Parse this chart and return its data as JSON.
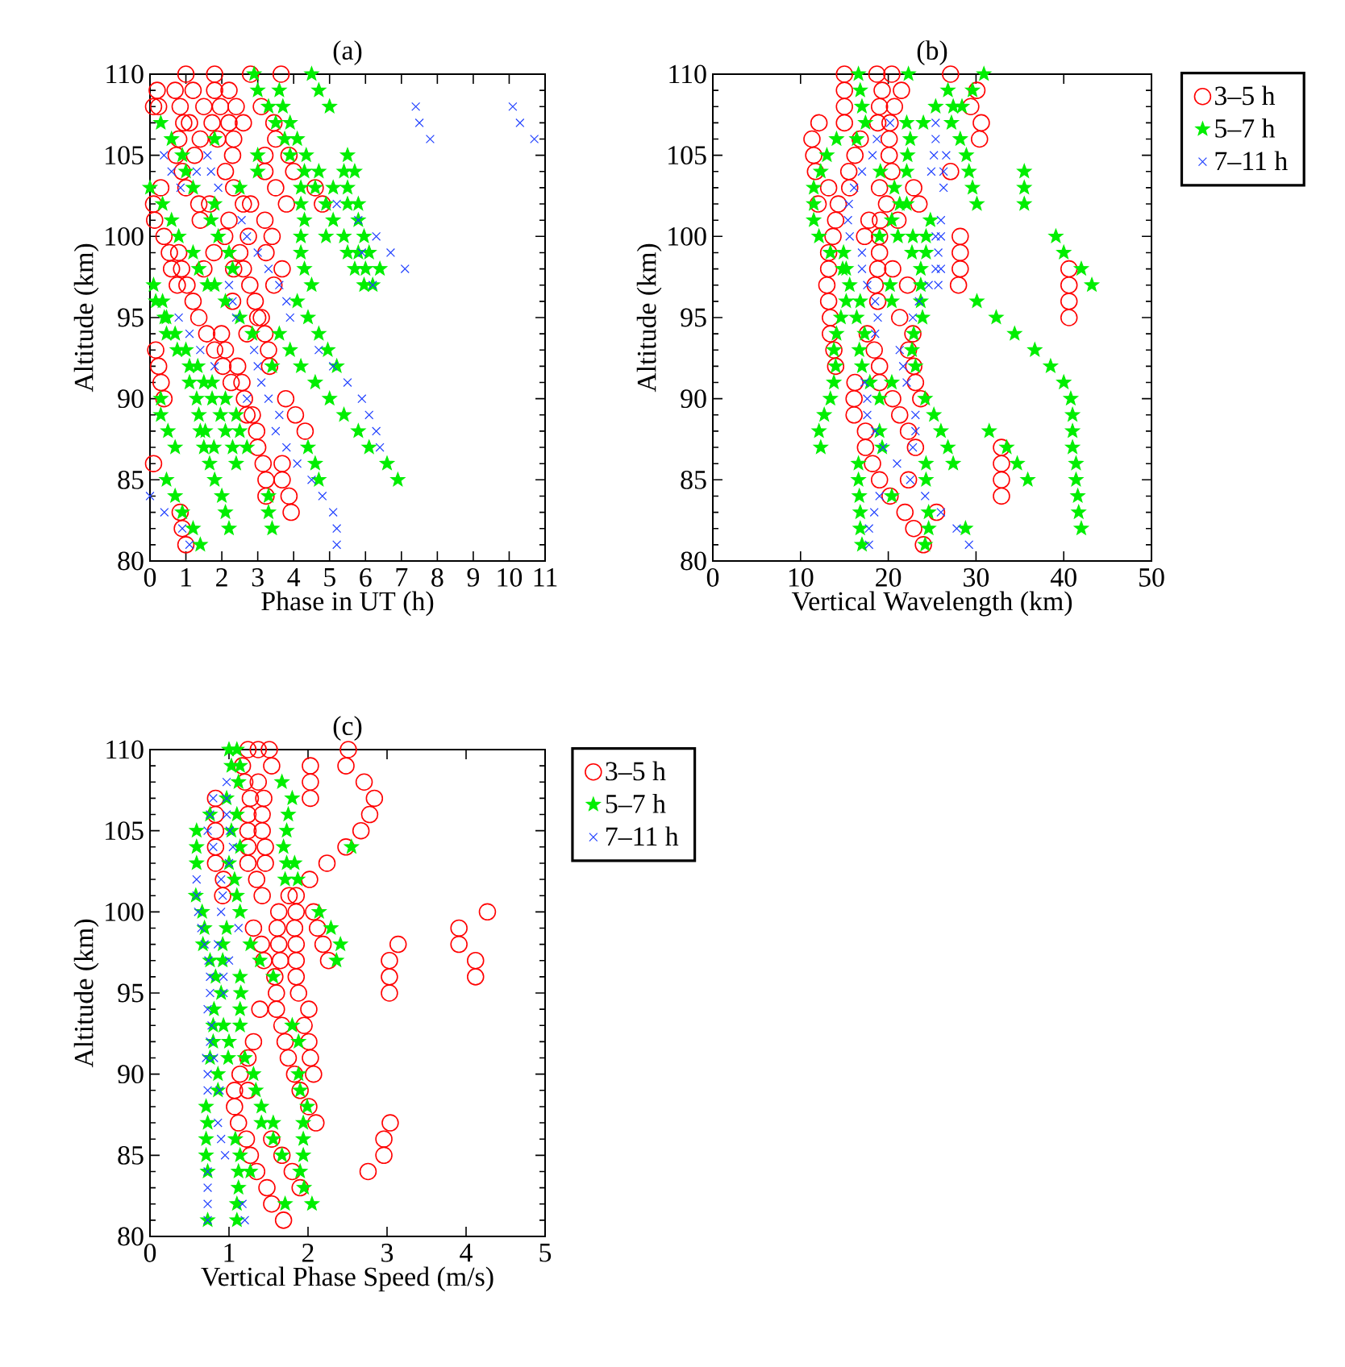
{
  "chart_data": [
    {
      "type": "scatter",
      "title": "(a)",
      "xlabel": "Phase in UT (h)",
      "ylabel": "Altitude (km)",
      "xlim": [
        0,
        11
      ],
      "xticks": [
        0,
        1,
        2,
        3,
        4,
        5,
        6,
        7,
        8,
        9,
        10,
        11
      ],
      "ylim": [
        80,
        110
      ],
      "yticks": [
        80,
        85,
        90,
        95,
        100,
        105,
        110
      ],
      "legend": false,
      "series": [
        {
          "color": "#ff0000",
          "marker": "circle",
          "x": [
            1.0,
            1.8,
            2.8,
            3.65,
            0.2,
            0.7,
            1.2,
            1.8,
            2.2,
            0.1,
            0.24,
            0.84,
            1.5,
            1.96,
            2.4,
            3.1,
            0.94,
            1.1,
            1.73,
            2.2,
            2.6,
            3.45,
            0.8,
            1.4,
            1.88,
            2.33,
            3.5,
            0.73,
            1.24,
            2.3,
            3.2,
            3.87,
            0.9,
            2.1,
            3.2,
            4.0,
            0.3,
            1.0,
            2.33,
            3.5,
            4.6,
            0.1,
            1.36,
            1.66,
            2.6,
            2.8,
            3.8,
            4.8,
            0.13,
            1.4,
            2.2,
            3.2,
            0.39,
            2.08,
            2.74,
            3.4,
            0.54,
            0.8,
            1.78,
            2.5,
            3.23,
            0.6,
            0.88,
            1.5,
            2.33,
            2.6,
            3.68,
            0.76,
            1.03,
            2.78,
            3.45,
            1.2,
            2.3,
            2.93,
            1.36,
            3.0,
            3.1,
            1.58,
            1.99,
            2.7,
            3.2,
            0.16,
            1.8,
            2.1,
            3.3,
            0.24,
            2.03,
            2.44,
            3.33,
            0.31,
            2.26,
            2.56,
            0.39,
            2.63,
            3.78,
            2.7,
            2.85,
            4.05,
            2.97,
            4.32,
            3.0,
            0.1,
            3.15,
            3.68,
            3.23,
            3.68,
            3.23,
            3.87,
            0.84,
            3.93,
            0.9,
            1.0
          ],
          "values": [
            110,
            110,
            110,
            110,
            109,
            109,
            109,
            109,
            109,
            108,
            108,
            108,
            108,
            108,
            108,
            108,
            107,
            107,
            107,
            107,
            107,
            107,
            106,
            106,
            106,
            106,
            106,
            105,
            105,
            105,
            105,
            105,
            104,
            104,
            104,
            104,
            103,
            103,
            103,
            103,
            103,
            102,
            102,
            102,
            102,
            102,
            102,
            102,
            101,
            101,
            101,
            101,
            100,
            100,
            100,
            100,
            99,
            99,
            99,
            99,
            99,
            98,
            98,
            98,
            98,
            98,
            98,
            97,
            97,
            97,
            97,
            96,
            96,
            96,
            95,
            95,
            95,
            94,
            94,
            94,
            94,
            93,
            93,
            93,
            93,
            92,
            92,
            92,
            92,
            91,
            91,
            91,
            90,
            90,
            90,
            89,
            89,
            89,
            88,
            88,
            87,
            86,
            86,
            86,
            85,
            85,
            84,
            84,
            83,
            83,
            82,
            81
          ]
        },
        {
          "color": "#00ee00",
          "marker": "star",
          "x": [
            2.9,
            4.5,
            3.0,
            3.6,
            4.7,
            3.3,
            3.7,
            5.0,
            0.3,
            3.5,
            3.9,
            0.6,
            1.8,
            3.75,
            4.1,
            0.9,
            3.0,
            3.9,
            4.35,
            5.5,
            1.0,
            3.0,
            4.3,
            4.7,
            5.4,
            5.7,
            0.0,
            1.2,
            2.5,
            4.2,
            4.6,
            5.1,
            5.5,
            0.35,
            1.8,
            4.2,
            4.9,
            5.5,
            5.8,
            0.6,
            1.7,
            4.3,
            5.1,
            5.8,
            0.8,
            1.9,
            4.2,
            4.9,
            5.4,
            5.96,
            1.2,
            2.2,
            4.2,
            5.5,
            5.8,
            6.1,
            1.36,
            2.3,
            4.3,
            5.7,
            6.0,
            6.4,
            0.1,
            1.6,
            1.8,
            4.5,
            5.96,
            6.2,
            0.16,
            0.35,
            2.1,
            4.1,
            0.4,
            0.46,
            2.5,
            4.4,
            0.46,
            0.7,
            2.85,
            3.6,
            4.7,
            0.76,
            1.0,
            3.9,
            4.95,
            1.1,
            1.33,
            3.4,
            4.2,
            5.2,
            1.1,
            1.5,
            1.73,
            4.6,
            0.3,
            1.3,
            1.73,
            2.1,
            5.0,
            0.3,
            1.36,
            1.96,
            2.4,
            5.4,
            0.5,
            1.4,
            1.54,
            2.1,
            2.5,
            5.8,
            0.7,
            1.5,
            1.78,
            2.3,
            2.7,
            4.4,
            6.1,
            1.66,
            2.4,
            4.6,
            6.6,
            0.46,
            1.8,
            4.7,
            6.9,
            0.7,
            2.0,
            3.3,
            0.9,
            2.1,
            3.3,
            1.2,
            2.2,
            3.4,
            1.4
          ],
          "values": [
            110,
            110,
            109,
            109,
            109,
            108,
            108,
            108,
            107,
            107,
            107,
            106,
            106,
            106,
            106,
            105,
            105,
            105,
            105,
            105,
            104,
            104,
            104,
            104,
            104,
            104,
            103,
            103,
            103,
            103,
            103,
            103,
            103,
            102,
            102,
            102,
            102,
            102,
            102,
            101,
            101,
            101,
            101,
            101,
            100,
            100,
            100,
            100,
            100,
            100,
            99,
            99,
            99,
            99,
            99,
            99,
            98,
            98,
            98,
            98,
            98,
            98,
            97,
            97,
            97,
            97,
            97,
            97,
            96,
            96,
            96,
            96,
            95,
            95,
            95,
            95,
            94,
            94,
            94,
            94,
            94,
            93,
            93,
            93,
            93,
            92,
            92,
            92,
            92,
            92,
            91,
            91,
            91,
            91,
            90,
            90,
            90,
            90,
            90,
            89,
            89,
            89,
            89,
            89,
            88,
            88,
            88,
            88,
            88,
            88,
            87,
            87,
            87,
            87,
            87,
            87,
            87,
            86,
            86,
            86,
            86,
            85,
            85,
            85,
            85,
            84,
            84,
            84,
            83,
            83,
            83,
            82,
            82,
            82,
            81
          ]
        },
        {
          "color": "#2040ff",
          "marker": "cross",
          "x": [
            7.4,
            10.1,
            7.5,
            10.3,
            7.8,
            10.7,
            0.39,
            1.6,
            0.6,
            1.3,
            1.7,
            0.85,
            1.9,
            5.2,
            2.55,
            5.8,
            2.7,
            6.3,
            3.0,
            5.9,
            6.7,
            3.3,
            7.1,
            2.2,
            3.6,
            6.2,
            2.3,
            3.8,
            0.8,
            2.4,
            3.9,
            1.1,
            1.4,
            2.9,
            4.7,
            1.8,
            3.0,
            5.1,
            3.1,
            5.5,
            2.7,
            3.3,
            5.9,
            3.6,
            6.1,
            3.5,
            6.3,
            3.8,
            6.4,
            4.1,
            4.5,
            0.0,
            4.8,
            0.4,
            5.1,
            0.9,
            5.2,
            1.1,
            5.2
          ],
          "values": [
            108,
            108,
            107,
            107,
            106,
            106,
            105,
            105,
            104,
            104,
            104,
            103,
            103,
            102,
            101,
            101,
            100,
            100,
            99,
            99,
            99,
            98,
            98,
            97,
            97,
            97,
            96,
            96,
            95,
            95,
            95,
            94,
            93,
            93,
            93,
            92,
            92,
            92,
            91,
            91,
            90,
            90,
            90,
            89,
            89,
            88,
            88,
            87,
            87,
            86,
            85,
            84,
            84,
            83,
            83,
            82,
            82,
            81,
            81
          ]
        }
      ]
    },
    {
      "type": "scatter",
      "title": "(b)",
      "xlabel": "Vertical Wavelength (km)",
      "ylabel": "Altitude (km)",
      "xlim": [
        0,
        50
      ],
      "xticks": [
        0,
        10,
        20,
        30,
        40,
        50
      ],
      "ylim": [
        80,
        110
      ],
      "yticks": [
        80,
        85,
        90,
        95,
        100,
        105,
        110
      ],
      "legend": "right",
      "series": [
        {
          "name": "3–5 h",
          "color": "#ff0000",
          "marker": "circle",
          "x": [
            15,
            18.7,
            20.4,
            27.1,
            15,
            19.3,
            21.5,
            30.1,
            15,
            19,
            20.7,
            29.4,
            12.1,
            15,
            18.8,
            20.2,
            30.6,
            11.3,
            16.8,
            20.1,
            30.4,
            11.5,
            16.2,
            20.1,
            11.7,
            15.5,
            20.4,
            27.1,
            13.2,
            15.6,
            19,
            22.9,
            12,
            14.3,
            19.8,
            23.5,
            14,
            17.8,
            19.1,
            21.1,
            13.7,
            17.3,
            19,
            28.2,
            13.2,
            19,
            28.2,
            13.2,
            18.8,
            20.5,
            28.2,
            40.6,
            13,
            18.5,
            22.2,
            28,
            40.6,
            13.2,
            18.8,
            40.6,
            13.4,
            21.3,
            40.6,
            13.4,
            17.6,
            22.8,
            13.8,
            18.4,
            22.3,
            14,
            19,
            22.9,
            16.2,
            19,
            23.1,
            16.1,
            20.5,
            23.7,
            16.1,
            21.3,
            17.4,
            22.3,
            17.4,
            23.1,
            32.9,
            18.2,
            32.9,
            19,
            22.3,
            32.9,
            20.2,
            32.9,
            21.9,
            25.5,
            22.9,
            24
          ],
          "values": [
            110,
            110,
            110,
            110,
            109,
            109,
            109,
            109,
            108,
            108,
            108,
            108,
            107,
            107,
            107,
            107,
            107,
            106,
            106,
            106,
            106,
            105,
            105,
            105,
            104,
            104,
            104,
            104,
            103,
            103,
            103,
            103,
            102,
            102,
            102,
            102,
            101,
            101,
            101,
            101,
            100,
            100,
            100,
            100,
            99,
            99,
            99,
            98,
            98,
            98,
            98,
            98,
            97,
            97,
            97,
            97,
            97,
            96,
            96,
            96,
            95,
            95,
            95,
            94,
            94,
            94,
            93,
            93,
            93,
            92,
            92,
            92,
            91,
            91,
            91,
            90,
            90,
            90,
            89,
            89,
            88,
            88,
            87,
            87,
            87,
            86,
            86,
            85,
            85,
            85,
            84,
            84,
            83,
            83,
            82,
            81
          ]
        },
        {
          "name": "5–7 h",
          "color": "#00ee00",
          "marker": "star",
          "x": [
            16.6,
            22.3,
            30.9,
            16.8,
            26.8,
            29.6,
            17,
            25.4,
            27.4,
            28.4,
            17.4,
            22.1,
            24,
            27.2,
            14.1,
            16.4,
            22.5,
            28.2,
            13,
            22.2,
            28.9,
            12.3,
            19.1,
            22.1,
            29.2,
            35.5,
            11.5,
            20.7,
            29.6,
            35.5,
            11.5,
            21.3,
            22.1,
            30.1,
            35.5,
            11.5,
            20.4,
            24.8,
            12.1,
            19,
            21.1,
            22.8,
            24.3,
            39.1,
            13.4,
            14.9,
            22.7,
            24.3,
            40,
            14.8,
            15.2,
            23.7,
            42,
            15.6,
            20.2,
            23.7,
            43.2,
            15.2,
            16.8,
            20.4,
            23.7,
            30.1,
            14.6,
            16.4,
            23.9,
            32.3,
            14.1,
            17.3,
            22.9,
            34.4,
            13.8,
            16.7,
            22.7,
            36.7,
            14,
            17,
            23.1,
            38.5,
            13.8,
            17.9,
            20.4,
            40,
            13.4,
            19,
            24.2,
            40.8,
            12.7,
            25.2,
            41,
            12.1,
            19,
            26,
            31.5,
            41,
            12.3,
            19.3,
            26.8,
            33.5,
            41,
            16.6,
            24.3,
            27.4,
            34.7,
            41.4,
            16.6,
            24.3,
            35.9,
            41.4,
            16.7,
            20.4,
            41.6,
            16.8,
            24.6,
            41.7,
            16.8,
            24.6,
            28.8,
            42,
            17,
            24.2
          ],
          "values": [
            110,
            110,
            110,
            109,
            109,
            109,
            108,
            108,
            108,
            108,
            107,
            107,
            107,
            107,
            106,
            106,
            106,
            106,
            105,
            105,
            105,
            104,
            104,
            104,
            104,
            104,
            103,
            103,
            103,
            103,
            102,
            102,
            102,
            102,
            102,
            101,
            101,
            101,
            100,
            100,
            100,
            100,
            100,
            100,
            99,
            99,
            99,
            99,
            99,
            98,
            98,
            98,
            98,
            97,
            97,
            97,
            97,
            96,
            96,
            96,
            96,
            96,
            95,
            95,
            95,
            95,
            94,
            94,
            94,
            94,
            93,
            93,
            93,
            93,
            92,
            92,
            92,
            92,
            91,
            91,
            91,
            91,
            90,
            90,
            90,
            90,
            89,
            89,
            89,
            88,
            88,
            88,
            88,
            88,
            87,
            87,
            87,
            87,
            87,
            86,
            86,
            86,
            86,
            86,
            85,
            85,
            85,
            85,
            84,
            84,
            84,
            83,
            83,
            83,
            82,
            82,
            82,
            82,
            81,
            81
          ]
        },
        {
          "name": "7–11 h",
          "color": "#2040ff",
          "marker": "cross",
          "x": [
            20.2,
            25.4,
            18.7,
            25.4,
            18.2,
            25.2,
            26.6,
            17,
            24.9,
            26.3,
            16.1,
            26.3,
            15.5,
            15.4,
            26,
            15.6,
            25.4,
            26,
            17,
            25.7,
            17,
            25.4,
            26,
            17.6,
            24.6,
            25.7,
            18.5,
            23.5,
            18.8,
            22.8,
            18.5,
            21.3,
            21.7,
            17.3,
            22.1,
            17.6,
            17.6,
            23.1,
            18.5,
            23.1,
            19.4,
            22.8,
            21,
            22.5,
            19,
            24.2,
            18.4,
            26,
            17.8,
            27.8,
            17.8,
            29.2
          ],
          "values": [
            107,
            107,
            106,
            106,
            105,
            105,
            105,
            104,
            104,
            104,
            103,
            103,
            102,
            101,
            101,
            100,
            100,
            100,
            99,
            99,
            98,
            98,
            98,
            97,
            97,
            97,
            96,
            96,
            95,
            95,
            94,
            93,
            92,
            91,
            91,
            90,
            89,
            89,
            88,
            88,
            87,
            87,
            86,
            85,
            84,
            84,
            83,
            83,
            82,
            82,
            81,
            81
          ]
        }
      ]
    },
    {
      "type": "scatter",
      "title": "(c)",
      "xlabel": "Vertical Phase Speed (m/s)",
      "ylabel": "Altitude (km)",
      "xlim": [
        0,
        5
      ],
      "xticks": [
        0,
        1,
        2,
        3,
        4,
        5
      ],
      "ylim": [
        80,
        110
      ],
      "yticks": [
        80,
        85,
        90,
        95,
        100,
        105,
        110
      ],
      "legend": "right",
      "series": [
        {
          "name": "3–5 h",
          "color": "#ff0000",
          "marker": "circle",
          "x": [
            1.24,
            1.37,
            1.51,
            2.51,
            1.17,
            1.54,
            2.03,
            2.48,
            1.2,
            1.37,
            2.03,
            2.71,
            0.83,
            1.27,
            1.44,
            2.03,
            2.84,
            0.83,
            1.24,
            1.42,
            2.78,
            0.83,
            1.24,
            1.42,
            2.67,
            0.83,
            1.24,
            1.46,
            2.48,
            0.83,
            1.24,
            1.46,
            2.24,
            0.93,
            1.35,
            2.02,
            0.92,
            1.42,
            1.76,
            1.85,
            1.63,
            1.85,
            2.07,
            4.27,
            1.31,
            1.61,
            1.83,
            2.12,
            3.91,
            1.41,
            1.63,
            1.85,
            2.19,
            3.14,
            3.91,
            1.44,
            1.65,
            1.85,
            2.26,
            3.03,
            4.12,
            1.58,
            1.85,
            3.03,
            4.12,
            1.6,
            1.88,
            3.03,
            1.39,
            1.6,
            2.01,
            1.67,
            1.95,
            1.31,
            1.71,
            2.01,
            1.24,
            1.75,
            2.03,
            1.14,
            1.83,
            2.07,
            1.07,
            1.24,
            1.9,
            1.07,
            2.01,
            1.12,
            2.1,
            3.04,
            1.22,
            1.54,
            2.96,
            1.27,
            1.67,
            2.96,
            1.35,
            1.8,
            2.76,
            1.48,
            1.9,
            1.54,
            1.69
          ],
          "values": [
            110,
            110,
            110,
            110,
            109,
            109,
            109,
            109,
            108,
            108,
            108,
            108,
            107,
            107,
            107,
            107,
            107,
            106,
            106,
            106,
            106,
            105,
            105,
            105,
            105,
            104,
            104,
            104,
            104,
            103,
            103,
            103,
            103,
            102,
            102,
            102,
            101,
            101,
            101,
            101,
            100,
            100,
            100,
            100,
            99,
            99,
            99,
            99,
            99,
            98,
            98,
            98,
            98,
            98,
            98,
            97,
            97,
            97,
            97,
            97,
            97,
            96,
            96,
            96,
            96,
            95,
            95,
            95,
            94,
            94,
            94,
            93,
            93,
            92,
            92,
            92,
            91,
            91,
            91,
            90,
            90,
            90,
            89,
            89,
            89,
            88,
            88,
            87,
            87,
            87,
            86,
            86,
            86,
            85,
            85,
            85,
            84,
            84,
            84,
            83,
            83,
            82,
            81
          ]
        },
        {
          "name": "5–7 h",
          "color": "#00ee00",
          "marker": "star",
          "x": [
            1.0,
            1.1,
            1.03,
            1.14,
            1.12,
            1.67,
            0.97,
            1.8,
            0.76,
            1.1,
            1.75,
            0.59,
            1.03,
            1.73,
            0.59,
            1.14,
            1.69,
            2.55,
            0.59,
            1.0,
            1.73,
            1.83,
            1.07,
            1.71,
            1.87,
            0.58,
            1.1,
            0.66,
            1.14,
            2.14,
            0.69,
            0.97,
            2.29,
            0.67,
            0.92,
            1.27,
            2.41,
            0.76,
            0.92,
            1.39,
            2.36,
            0.83,
            1.14,
            1.56,
            0.9,
            1.15,
            0.81,
            1.14,
            0.8,
            0.93,
            1.14,
            1.8,
            0.8,
            1.0,
            1.88,
            0.76,
            0.99,
            1.2,
            0.86,
            1.31,
            1.88,
            0.86,
            1.34,
            1.9,
            0.71,
            1.41,
            1.99,
            0.73,
            1.41,
            1.56,
            1.94,
            0.71,
            1.08,
            1.56,
            1.94,
            0.71,
            1.14,
            1.67,
            1.94,
            0.73,
            1.12,
            1.27,
            1.9,
            1.12,
            1.95,
            1.1,
            1.71,
            2.05,
            0.73,
            1.1
          ],
          "values": [
            110,
            110,
            109,
            109,
            108,
            108,
            107,
            107,
            106,
            106,
            106,
            105,
            105,
            105,
            104,
            104,
            104,
            104,
            103,
            103,
            103,
            103,
            102,
            102,
            102,
            101,
            101,
            100,
            100,
            100,
            99,
            99,
            99,
            98,
            98,
            98,
            98,
            97,
            97,
            97,
            97,
            96,
            96,
            96,
            95,
            95,
            94,
            94,
            93,
            93,
            93,
            93,
            92,
            92,
            92,
            91,
            91,
            91,
            90,
            90,
            90,
            89,
            89,
            89,
            88,
            88,
            88,
            87,
            87,
            87,
            87,
            86,
            86,
            86,
            86,
            85,
            85,
            85,
            85,
            84,
            84,
            84,
            84,
            83,
            83,
            82,
            82,
            82,
            81,
            81
          ]
        },
        {
          "name": "7–11 h",
          "color": "#2040ff",
          "marker": "cross",
          "x": [
            0.97,
            0.8,
            0.97,
            0.76,
            0.97,
            0.73,
            1.01,
            0.8,
            1.05,
            1.0,
            0.59,
            0.9,
            0.59,
            0.92,
            0.61,
            0.9,
            0.65,
            1.12,
            0.69,
            0.86,
            0.74,
            1.0,
            0.76,
            0.93,
            0.76,
            0.93,
            0.73,
            0.78,
            0.76,
            0.71,
            0.81,
            0.73,
            0.73,
            0.88,
            0.86,
            0.9,
            0.95,
            0.73,
            0.73,
            0.73,
            1.17,
            0.73,
            1.2
          ],
          "values": [
            108,
            107,
            107,
            106,
            106,
            105,
            105,
            104,
            104,
            103,
            102,
            102,
            101,
            101,
            100,
            100,
            99,
            99,
            98,
            98,
            97,
            97,
            96,
            96,
            95,
            95,
            94,
            93,
            92,
            91,
            91,
            90,
            89,
            89,
            87,
            86,
            85,
            84,
            83,
            82,
            82,
            81,
            81
          ]
        }
      ]
    }
  ]
}
